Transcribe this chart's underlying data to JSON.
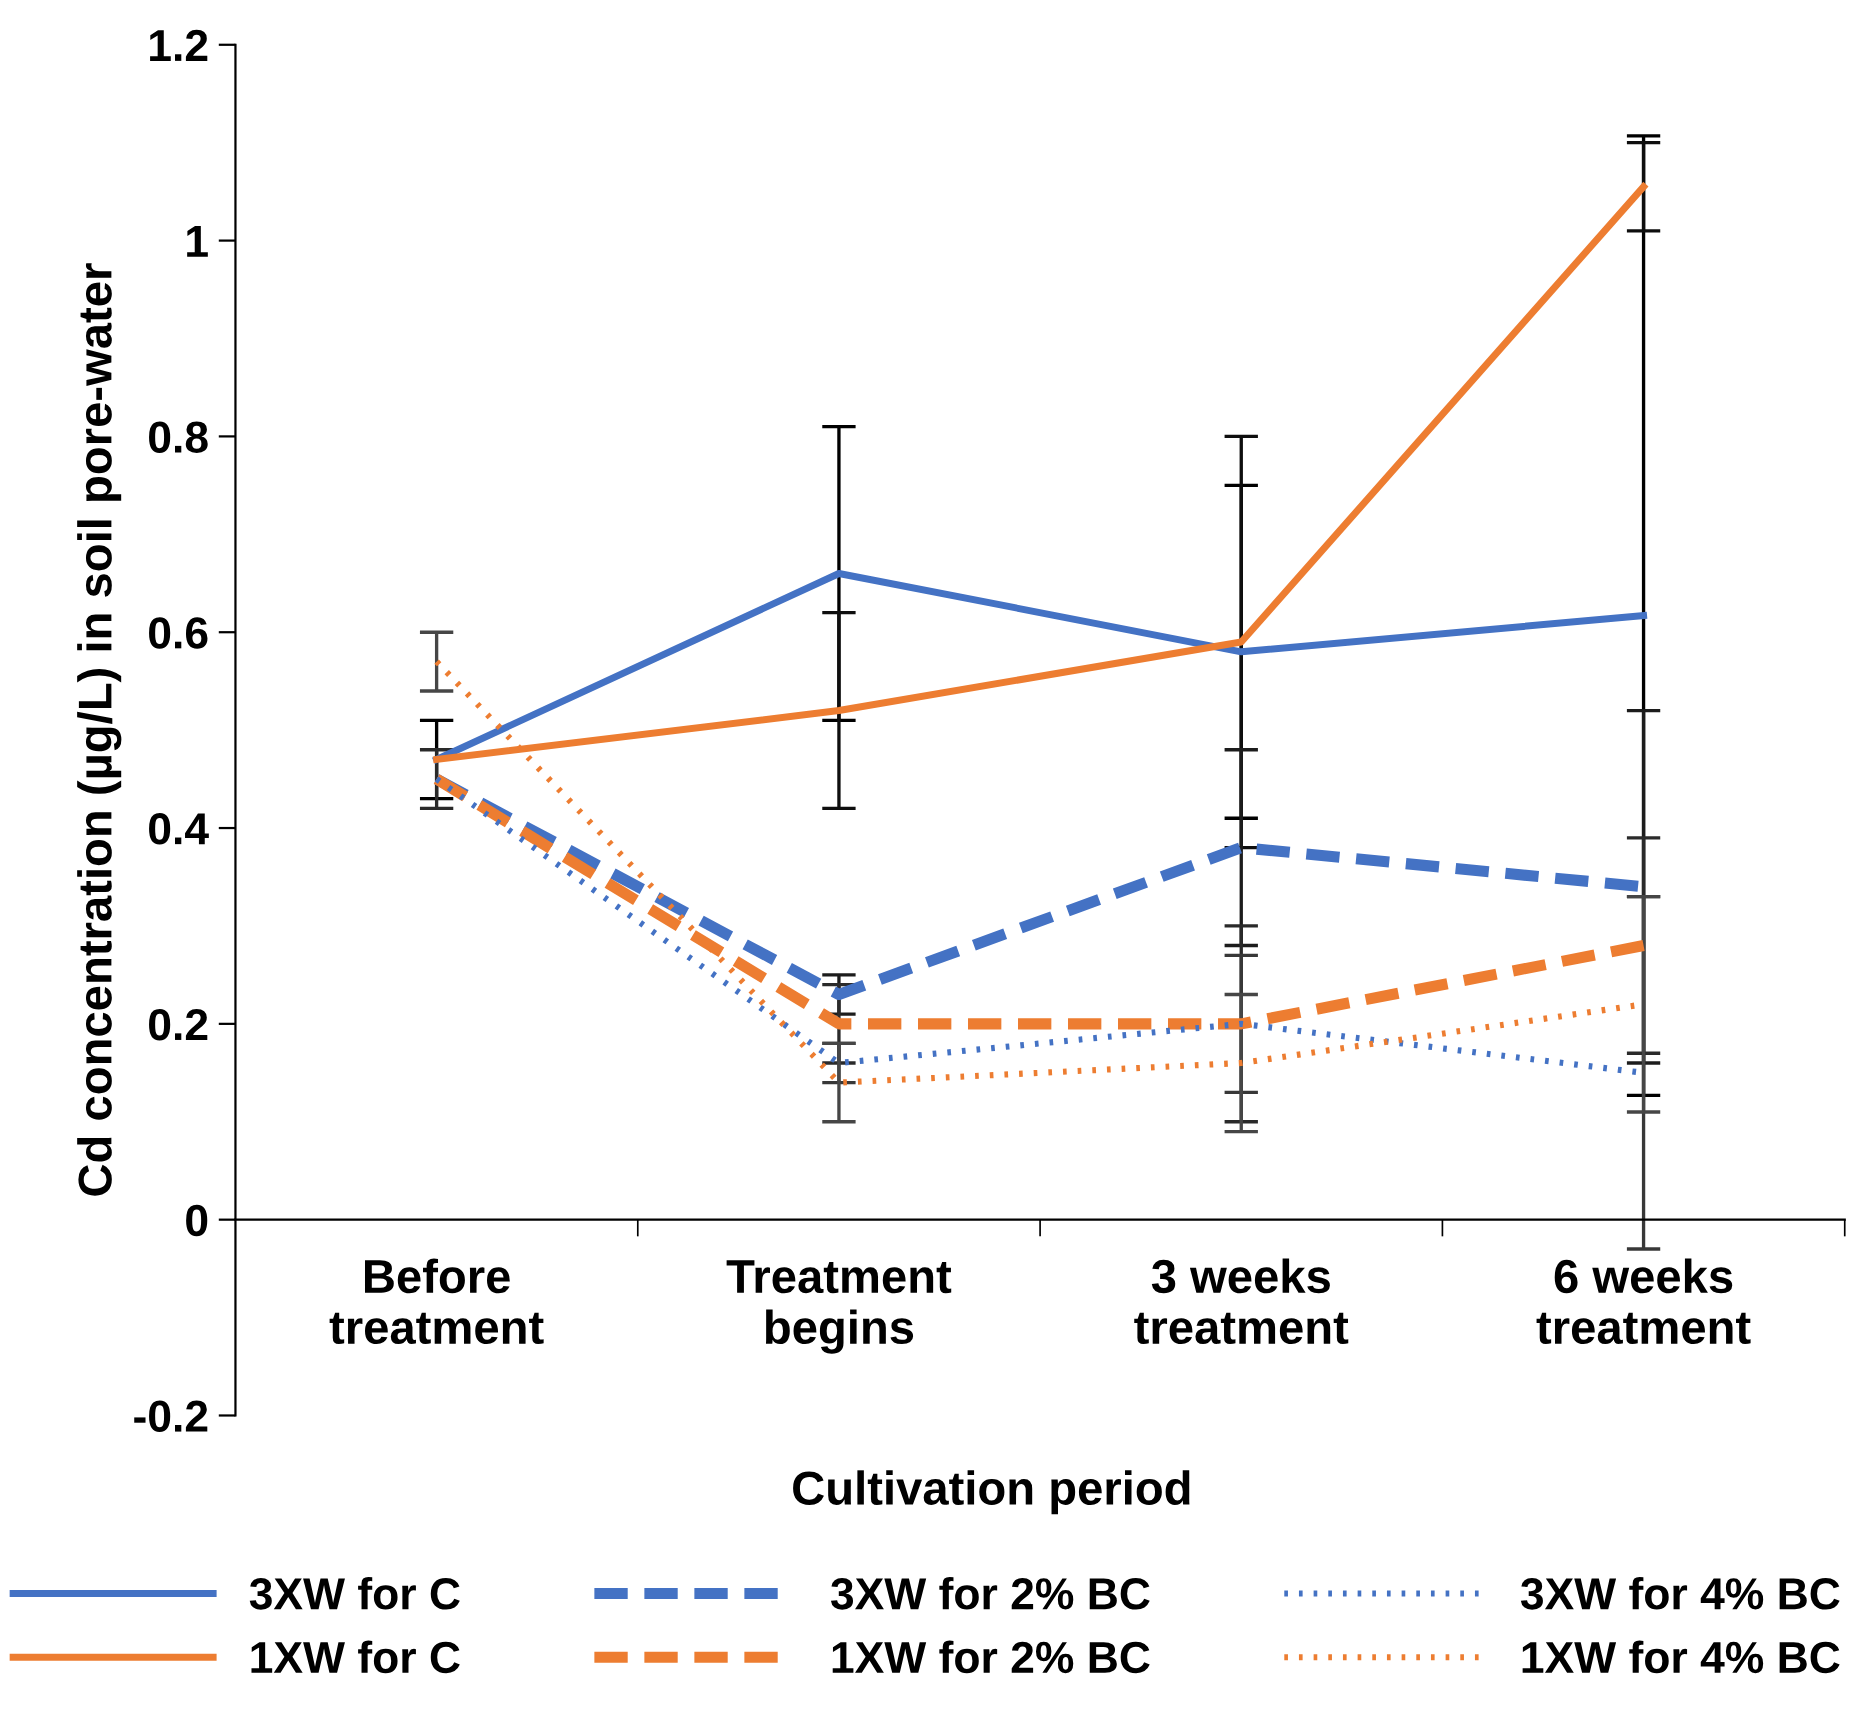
{
  "chart_data": {
    "type": "line",
    "xlabel": "Cultivation period",
    "ylabel": "Cd concentration (µg/L) in soil pore-water",
    "categories": [
      "Before\ntreatment",
      "Treatment\nbegins",
      "3 weeks\ntreatment",
      "6 weeks\ntreatment"
    ],
    "ylim": [
      -0.2,
      1.2
    ],
    "yticks": [
      -0.2,
      0,
      0.2,
      0.4,
      0.6,
      0.8,
      1,
      1.2
    ],
    "grid": false,
    "legend": "bottom",
    "series": [
      {
        "name": "3XW for C",
        "color": "#4472c4",
        "line_style": "solid",
        "values": [
          0.47,
          0.66,
          0.58,
          0.617
        ],
        "errors": [
          0.04,
          0.15,
          0.17,
          0.49
        ]
      },
      {
        "name": "1XW for C",
        "color": "#ed7d31",
        "line_style": "solid",
        "values": [
          0.47,
          0.52,
          0.59,
          1.055
        ],
        "errors": [
          null,
          0.1,
          0.21,
          0.045
        ]
      },
      {
        "name": "3XW for 2% BC",
        "color": "#4472c4",
        "line_style": "dashed",
        "values": [
          0.45,
          0.23,
          0.38,
          0.34
        ],
        "errors": [
          null,
          0.02,
          0.1,
          0.18
        ]
      },
      {
        "name": "1XW for 2% BC",
        "color": "#ed7d31",
        "line_style": "dashed",
        "values": [
          0.45,
          0.2,
          0.2,
          0.28
        ],
        "errors": [
          0.03,
          0.04,
          0.1,
          0.11
        ]
      },
      {
        "name": "3XW for 4% BC",
        "color": "#4472c4",
        "line_style": "dotted",
        "values": [
          0.45,
          0.16,
          0.2,
          0.15
        ],
        "errors": [
          null,
          0.02,
          0.07,
          0.18
        ]
      },
      {
        "name": "1XW for 4% BC",
        "color": "#ed7d31",
        "line_style": "dotted",
        "values": [
          0.57,
          0.14,
          0.16,
          0.22
        ],
        "errors": [
          0.03,
          0.04,
          0.07,
          0.11
        ]
      }
    ]
  }
}
